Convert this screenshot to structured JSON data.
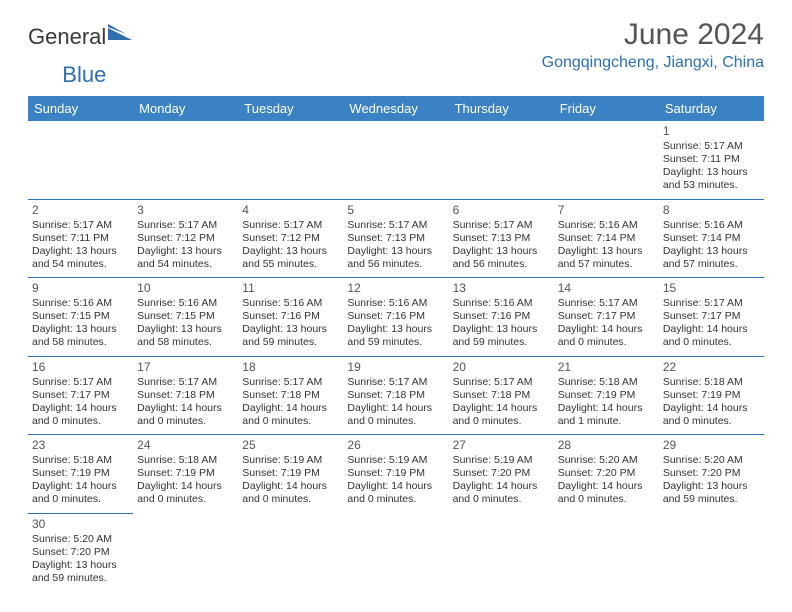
{
  "logo": {
    "text_main": "General",
    "text_accent": "Blue"
  },
  "title": "June 2024",
  "location": "Gongqingcheng, Jiangxi, China",
  "colors": {
    "header_bg": "#3b82c4",
    "header_text": "#ffffff",
    "accent": "#2f6fb0",
    "body_text": "#333333",
    "title_text": "#555555"
  },
  "calendar": {
    "day_headers": [
      "Sunday",
      "Monday",
      "Tuesday",
      "Wednesday",
      "Thursday",
      "Friday",
      "Saturday"
    ],
    "weeks": [
      [
        null,
        null,
        null,
        null,
        null,
        null,
        {
          "n": "1",
          "sr": "Sunrise: 5:17 AM",
          "ss": "Sunset: 7:11 PM",
          "dl": "Daylight: 13 hours and 53 minutes."
        }
      ],
      [
        {
          "n": "2",
          "sr": "Sunrise: 5:17 AM",
          "ss": "Sunset: 7:11 PM",
          "dl": "Daylight: 13 hours and 54 minutes."
        },
        {
          "n": "3",
          "sr": "Sunrise: 5:17 AM",
          "ss": "Sunset: 7:12 PM",
          "dl": "Daylight: 13 hours and 54 minutes."
        },
        {
          "n": "4",
          "sr": "Sunrise: 5:17 AM",
          "ss": "Sunset: 7:12 PM",
          "dl": "Daylight: 13 hours and 55 minutes."
        },
        {
          "n": "5",
          "sr": "Sunrise: 5:17 AM",
          "ss": "Sunset: 7:13 PM",
          "dl": "Daylight: 13 hours and 56 minutes."
        },
        {
          "n": "6",
          "sr": "Sunrise: 5:17 AM",
          "ss": "Sunset: 7:13 PM",
          "dl": "Daylight: 13 hours and 56 minutes."
        },
        {
          "n": "7",
          "sr": "Sunrise: 5:16 AM",
          "ss": "Sunset: 7:14 PM",
          "dl": "Daylight: 13 hours and 57 minutes."
        },
        {
          "n": "8",
          "sr": "Sunrise: 5:16 AM",
          "ss": "Sunset: 7:14 PM",
          "dl": "Daylight: 13 hours and 57 minutes."
        }
      ],
      [
        {
          "n": "9",
          "sr": "Sunrise: 5:16 AM",
          "ss": "Sunset: 7:15 PM",
          "dl": "Daylight: 13 hours and 58 minutes."
        },
        {
          "n": "10",
          "sr": "Sunrise: 5:16 AM",
          "ss": "Sunset: 7:15 PM",
          "dl": "Daylight: 13 hours and 58 minutes."
        },
        {
          "n": "11",
          "sr": "Sunrise: 5:16 AM",
          "ss": "Sunset: 7:16 PM",
          "dl": "Daylight: 13 hours and 59 minutes."
        },
        {
          "n": "12",
          "sr": "Sunrise: 5:16 AM",
          "ss": "Sunset: 7:16 PM",
          "dl": "Daylight: 13 hours and 59 minutes."
        },
        {
          "n": "13",
          "sr": "Sunrise: 5:16 AM",
          "ss": "Sunset: 7:16 PM",
          "dl": "Daylight: 13 hours and 59 minutes."
        },
        {
          "n": "14",
          "sr": "Sunrise: 5:17 AM",
          "ss": "Sunset: 7:17 PM",
          "dl": "Daylight: 14 hours and 0 minutes."
        },
        {
          "n": "15",
          "sr": "Sunrise: 5:17 AM",
          "ss": "Sunset: 7:17 PM",
          "dl": "Daylight: 14 hours and 0 minutes."
        }
      ],
      [
        {
          "n": "16",
          "sr": "Sunrise: 5:17 AM",
          "ss": "Sunset: 7:17 PM",
          "dl": "Daylight: 14 hours and 0 minutes."
        },
        {
          "n": "17",
          "sr": "Sunrise: 5:17 AM",
          "ss": "Sunset: 7:18 PM",
          "dl": "Daylight: 14 hours and 0 minutes."
        },
        {
          "n": "18",
          "sr": "Sunrise: 5:17 AM",
          "ss": "Sunset: 7:18 PM",
          "dl": "Daylight: 14 hours and 0 minutes."
        },
        {
          "n": "19",
          "sr": "Sunrise: 5:17 AM",
          "ss": "Sunset: 7:18 PM",
          "dl": "Daylight: 14 hours and 0 minutes."
        },
        {
          "n": "20",
          "sr": "Sunrise: 5:17 AM",
          "ss": "Sunset: 7:18 PM",
          "dl": "Daylight: 14 hours and 0 minutes."
        },
        {
          "n": "21",
          "sr": "Sunrise: 5:18 AM",
          "ss": "Sunset: 7:19 PM",
          "dl": "Daylight: 14 hours and 1 minute."
        },
        {
          "n": "22",
          "sr": "Sunrise: 5:18 AM",
          "ss": "Sunset: 7:19 PM",
          "dl": "Daylight: 14 hours and 0 minutes."
        }
      ],
      [
        {
          "n": "23",
          "sr": "Sunrise: 5:18 AM",
          "ss": "Sunset: 7:19 PM",
          "dl": "Daylight: 14 hours and 0 minutes."
        },
        {
          "n": "24",
          "sr": "Sunrise: 5:18 AM",
          "ss": "Sunset: 7:19 PM",
          "dl": "Daylight: 14 hours and 0 minutes."
        },
        {
          "n": "25",
          "sr": "Sunrise: 5:19 AM",
          "ss": "Sunset: 7:19 PM",
          "dl": "Daylight: 14 hours and 0 minutes."
        },
        {
          "n": "26",
          "sr": "Sunrise: 5:19 AM",
          "ss": "Sunset: 7:19 PM",
          "dl": "Daylight: 14 hours and 0 minutes."
        },
        {
          "n": "27",
          "sr": "Sunrise: 5:19 AM",
          "ss": "Sunset: 7:20 PM",
          "dl": "Daylight: 14 hours and 0 minutes."
        },
        {
          "n": "28",
          "sr": "Sunrise: 5:20 AM",
          "ss": "Sunset: 7:20 PM",
          "dl": "Daylight: 14 hours and 0 minutes."
        },
        {
          "n": "29",
          "sr": "Sunrise: 5:20 AM",
          "ss": "Sunset: 7:20 PM",
          "dl": "Daylight: 13 hours and 59 minutes."
        }
      ],
      [
        {
          "n": "30",
          "sr": "Sunrise: 5:20 AM",
          "ss": "Sunset: 7:20 PM",
          "dl": "Daylight: 13 hours and 59 minutes."
        },
        null,
        null,
        null,
        null,
        null,
        null
      ]
    ]
  }
}
